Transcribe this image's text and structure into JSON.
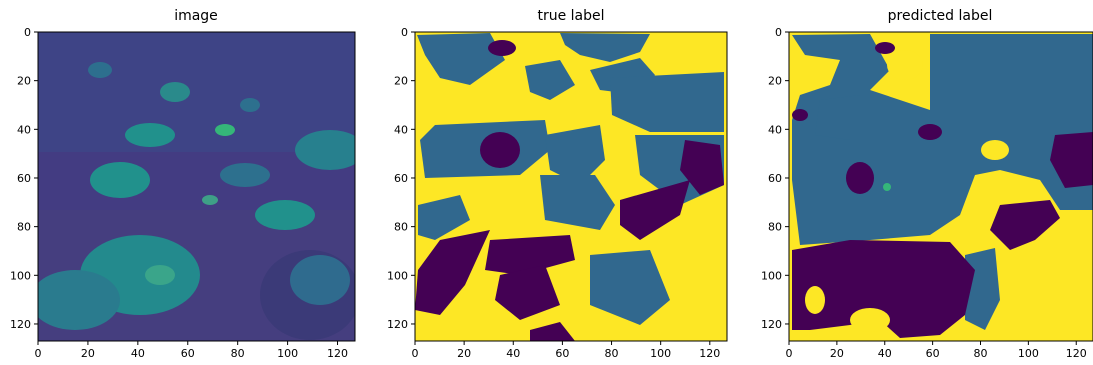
{
  "chart_data": [
    {
      "type": "heatmap",
      "title": "image",
      "xlim": [
        0,
        127
      ],
      "ylim": [
        0,
        127
      ],
      "x_ticks": [
        0,
        20,
        40,
        60,
        80,
        100,
        120
      ],
      "y_ticks": [
        0,
        20,
        40,
        60,
        80,
        100,
        120
      ],
      "x_tick_labels": [
        "0",
        "20",
        "40",
        "60",
        "80",
        "100",
        "120"
      ],
      "y_tick_labels": [
        "0",
        "20",
        "40",
        "60",
        "80",
        "100",
        "120"
      ],
      "colormap": [
        "#440154",
        "#3b528b",
        "#21918c",
        "#5ec962",
        "#fde725"
      ]
    },
    {
      "type": "heatmap",
      "title": "true label",
      "xlim": [
        0,
        127
      ],
      "ylim": [
        0,
        127
      ],
      "x_ticks": [
        0,
        20,
        40,
        60,
        80,
        100,
        120
      ],
      "y_ticks": [
        0,
        20,
        40,
        60,
        80,
        100,
        120
      ],
      "x_tick_labels": [
        "0",
        "20",
        "40",
        "60",
        "80",
        "100",
        "120"
      ],
      "y_tick_labels": [
        "0",
        "20",
        "40",
        "60",
        "80",
        "100",
        "120"
      ],
      "class_colors": [
        "#440154",
        "#31688e",
        "#35b779",
        "#fde725"
      ]
    },
    {
      "type": "heatmap",
      "title": "predicted label",
      "xlim": [
        0,
        127
      ],
      "ylim": [
        0,
        127
      ],
      "x_ticks": [
        0,
        20,
        40,
        60,
        80,
        100,
        120
      ],
      "y_ticks": [
        0,
        20,
        40,
        60,
        80,
        100,
        120
      ],
      "x_tick_labels": [
        "0",
        "20",
        "40",
        "60",
        "80",
        "100",
        "120"
      ],
      "y_tick_labels": [
        "0",
        "20",
        "40",
        "60",
        "80",
        "100",
        "120"
      ],
      "class_colors": [
        "#440154",
        "#31688e",
        "#35b779",
        "#fde725"
      ]
    }
  ]
}
